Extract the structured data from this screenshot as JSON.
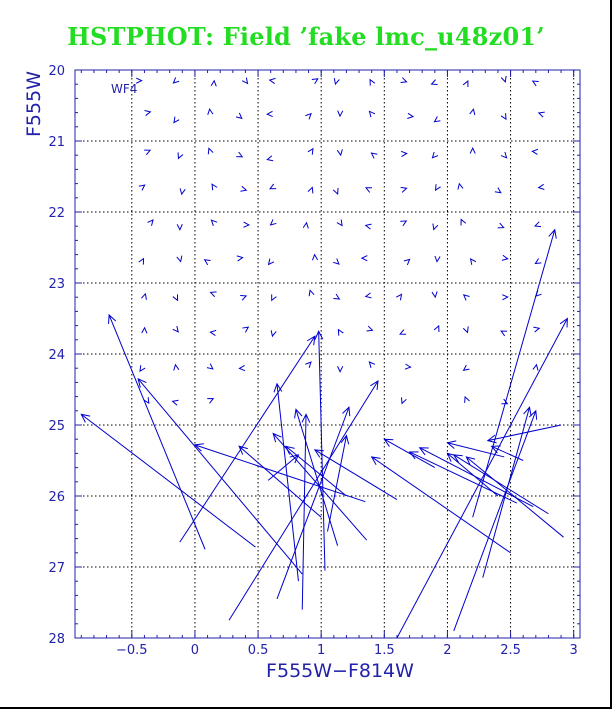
{
  "title": "HSTPHOT: Field ’fake lmc_u48z01’",
  "colors": {
    "title": "#22dd22",
    "axes": "#2222aa",
    "data": "#0000cc",
    "grid": "#000000"
  },
  "chart_data": {
    "type": "scatter",
    "title": "HSTPHOT: Field ’fake lmc_u48z01’",
    "xlabel": "F555W−F814W",
    "ylabel": "F555W",
    "panel_label": "WF4",
    "xlim": [
      -0.95,
      3.05
    ],
    "ylim": [
      28,
      20
    ],
    "y_inverted": true,
    "grid": true,
    "xticks": [
      -0.5,
      0,
      0.5,
      1,
      1.5,
      2,
      2.5,
      3
    ],
    "xtick_labels": [
      "−0.5",
      "0",
      "0.5",
      "1",
      "1.5",
      "2",
      "2.5",
      "3"
    ],
    "yticks": [
      20,
      21,
      22,
      23,
      24,
      25,
      26,
      27,
      28
    ],
    "ytick_labels": [
      "20",
      "21",
      "22",
      "23",
      "24",
      "25",
      "26",
      "27",
      "28"
    ],
    "marker": "arrow",
    "arrows": [
      {
        "x0": -0.12,
        "y0": 26.65,
        "x1": 0.95,
        "y1": 23.75
      },
      {
        "x0": 0.08,
        "y0": 26.75,
        "x1": -0.68,
        "y1": 23.45
      },
      {
        "x0": 0.48,
        "y0": 26.72,
        "x1": -0.9,
        "y1": 24.85
      },
      {
        "x0": 1.35,
        "y0": 26.08,
        "x1": 0.0,
        "y1": 25.28
      },
      {
        "x0": 0.85,
        "y0": 27.1,
        "x1": -0.45,
        "y1": 24.35
      },
      {
        "x0": 0.27,
        "y0": 27.75,
        "x1": 1.45,
        "y1": 24.38
      },
      {
        "x0": 0.65,
        "y0": 27.45,
        "x1": 1.22,
        "y1": 24.75
      },
      {
        "x0": 0.82,
        "y0": 27.2,
        "x1": 0.65,
        "y1": 24.42
      },
      {
        "x0": 0.85,
        "y0": 27.6,
        "x1": 0.88,
        "y1": 24.85
      },
      {
        "x0": 1.03,
        "y0": 27.05,
        "x1": 0.98,
        "y1": 23.68
      },
      {
        "x0": 1.13,
        "y0": 26.7,
        "x1": 0.8,
        "y1": 24.78
      },
      {
        "x0": 1.0,
        "y0": 26.3,
        "x1": 0.35,
        "y1": 25.3
      },
      {
        "x0": 1.36,
        "y0": 26.62,
        "x1": 0.62,
        "y1": 25.12
      },
      {
        "x0": 1.2,
        "y0": 26.0,
        "x1": 0.72,
        "y1": 25.3
      },
      {
        "x0": 1.05,
        "y0": 26.5,
        "x1": 1.2,
        "y1": 25.15
      },
      {
        "x0": 0.58,
        "y0": 25.78,
        "x1": 0.82,
        "y1": 25.42
      },
      {
        "x0": 1.6,
        "y0": 26.05,
        "x1": 0.95,
        "y1": 25.35
      },
      {
        "x0": 1.6,
        "y0": 28.0,
        "x1": 2.95,
        "y1": 23.5
      },
      {
        "x0": 2.05,
        "y0": 27.9,
        "x1": 2.7,
        "y1": 24.8
      },
      {
        "x0": 2.5,
        "y0": 26.8,
        "x1": 1.4,
        "y1": 25.45
      },
      {
        "x0": 2.2,
        "y0": 26.3,
        "x1": 2.85,
        "y1": 22.25
      },
      {
        "x0": 2.28,
        "y0": 27.15,
        "x1": 2.65,
        "y1": 24.75
      },
      {
        "x0": 2.68,
        "y0": 26.15,
        "x1": 1.78,
        "y1": 25.32
      },
      {
        "x0": 2.8,
        "y0": 26.25,
        "x1": 2.05,
        "y1": 25.42
      },
      {
        "x0": 2.92,
        "y0": 26.58,
        "x1": 2.15,
        "y1": 25.45
      },
      {
        "x0": 2.55,
        "y0": 26.1,
        "x1": 1.7,
        "y1": 25.38
      },
      {
        "x0": 2.4,
        "y0": 26.0,
        "x1": 2.0,
        "y1": 25.4
      },
      {
        "x0": 2.9,
        "y0": 25.0,
        "x1": 2.32,
        "y1": 25.22
      },
      {
        "x0": 2.45,
        "y0": 25.45,
        "x1": 2.0,
        "y1": 25.25
      },
      {
        "x0": 2.6,
        "y0": 25.5,
        "x1": 2.35,
        "y1": 25.3
      },
      {
        "x0": 1.9,
        "y0": 25.6,
        "x1": 1.5,
        "y1": 25.2
      }
    ],
    "grid_markers": [
      {
        "x": -0.45,
        "y": 20.15
      },
      {
        "x": -0.15,
        "y": 20.15
      },
      {
        "x": 0.15,
        "y": 20.2
      },
      {
        "x": 0.4,
        "y": 20.15
      },
      {
        "x": 0.62,
        "y": 20.15
      },
      {
        "x": 0.95,
        "y": 20.15
      },
      {
        "x": 1.12,
        "y": 20.15
      },
      {
        "x": 1.4,
        "y": 20.18
      },
      {
        "x": 1.65,
        "y": 20.15
      },
      {
        "x": 1.9,
        "y": 20.18
      },
      {
        "x": 2.15,
        "y": 20.2
      },
      {
        "x": 2.45,
        "y": 20.12
      },
      {
        "x": 2.7,
        "y": 20.18
      },
      {
        "x": -0.38,
        "y": 20.6
      },
      {
        "x": -0.15,
        "y": 20.7
      },
      {
        "x": 0.12,
        "y": 20.6
      },
      {
        "x": 0.35,
        "y": 20.65
      },
      {
        "x": 0.6,
        "y": 20.62
      },
      {
        "x": 0.9,
        "y": 20.65
      },
      {
        "x": 1.15,
        "y": 20.6
      },
      {
        "x": 1.4,
        "y": 20.62
      },
      {
        "x": 1.7,
        "y": 20.65
      },
      {
        "x": 1.92,
        "y": 20.7
      },
      {
        "x": 2.2,
        "y": 20.6
      },
      {
        "x": 2.45,
        "y": 20.65
      },
      {
        "x": 2.75,
        "y": 20.62
      },
      {
        "x": -0.38,
        "y": 21.15
      },
      {
        "x": -0.12,
        "y": 21.2
      },
      {
        "x": 0.12,
        "y": 21.15
      },
      {
        "x": 0.35,
        "y": 21.2
      },
      {
        "x": 0.6,
        "y": 21.25
      },
      {
        "x": 0.92,
        "y": 21.15
      },
      {
        "x": 1.15,
        "y": 21.15
      },
      {
        "x": 1.42,
        "y": 21.2
      },
      {
        "x": 1.65,
        "y": 21.18
      },
      {
        "x": 1.9,
        "y": 21.2
      },
      {
        "x": 2.2,
        "y": 21.15
      },
      {
        "x": 2.45,
        "y": 21.2
      },
      {
        "x": 2.7,
        "y": 21.15
      },
      {
        "x": -0.42,
        "y": 21.65
      },
      {
        "x": -0.1,
        "y": 21.7
      },
      {
        "x": 0.15,
        "y": 21.65
      },
      {
        "x": 0.38,
        "y": 21.68
      },
      {
        "x": 0.62,
        "y": 21.65
      },
      {
        "x": 0.92,
        "y": 21.7
      },
      {
        "x": 1.12,
        "y": 21.7
      },
      {
        "x": 1.38,
        "y": 21.68
      },
      {
        "x": 1.65,
        "y": 21.68
      },
      {
        "x": 1.92,
        "y": 21.65
      },
      {
        "x": 2.1,
        "y": 21.65
      },
      {
        "x": 2.4,
        "y": 21.7
      },
      {
        "x": 2.75,
        "y": 21.65
      },
      {
        "x": -0.35,
        "y": 22.15
      },
      {
        "x": -0.12,
        "y": 22.2
      },
      {
        "x": 0.15,
        "y": 22.15
      },
      {
        "x": 0.4,
        "y": 22.18
      },
      {
        "x": 0.62,
        "y": 22.15
      },
      {
        "x": 0.88,
        "y": 22.2
      },
      {
        "x": 1.15,
        "y": 22.15
      },
      {
        "x": 1.38,
        "y": 22.2
      },
      {
        "x": 1.65,
        "y": 22.15
      },
      {
        "x": 1.9,
        "y": 22.2
      },
      {
        "x": 2.12,
        "y": 22.15
      },
      {
        "x": 2.42,
        "y": 22.2
      },
      {
        "x": 2.72,
        "y": 22.18
      },
      {
        "x": -0.42,
        "y": 22.7
      },
      {
        "x": -0.12,
        "y": 22.65
      },
      {
        "x": 0.1,
        "y": 22.7
      },
      {
        "x": 0.35,
        "y": 22.65
      },
      {
        "x": 0.6,
        "y": 22.7
      },
      {
        "x": 0.95,
        "y": 22.65
      },
      {
        "x": 1.12,
        "y": 22.7
      },
      {
        "x": 1.35,
        "y": 22.65
      },
      {
        "x": 1.68,
        "y": 22.7
      },
      {
        "x": 1.92,
        "y": 22.65
      },
      {
        "x": 2.2,
        "y": 22.7
      },
      {
        "x": 2.45,
        "y": 22.65
      },
      {
        "x": 2.72,
        "y": 22.7
      },
      {
        "x": -0.4,
        "y": 23.2
      },
      {
        "x": -0.15,
        "y": 23.2
      },
      {
        "x": 0.15,
        "y": 23.15
      },
      {
        "x": 0.38,
        "y": 23.2
      },
      {
        "x": 0.62,
        "y": 23.2
      },
      {
        "x": 0.92,
        "y": 23.15
      },
      {
        "x": 1.12,
        "y": 23.2
      },
      {
        "x": 1.38,
        "y": 23.18
      },
      {
        "x": 1.62,
        "y": 23.2
      },
      {
        "x": 1.9,
        "y": 23.15
      },
      {
        "x": 2.15,
        "y": 23.2
      },
      {
        "x": 2.45,
        "y": 23.2
      },
      {
        "x": 2.72,
        "y": 23.15
      },
      {
        "x": -0.4,
        "y": 23.68
      },
      {
        "x": -0.15,
        "y": 23.65
      },
      {
        "x": 0.15,
        "y": 23.7
      },
      {
        "x": 0.4,
        "y": 23.65
      },
      {
        "x": 0.62,
        "y": 23.7
      },
      {
        "x": 1.15,
        "y": 23.7
      },
      {
        "x": 1.38,
        "y": 23.65
      },
      {
        "x": 1.65,
        "y": 23.7
      },
      {
        "x": 1.92,
        "y": 23.65
      },
      {
        "x": 2.15,
        "y": 23.65
      },
      {
        "x": 2.45,
        "y": 23.7
      },
      {
        "x": 2.7,
        "y": 23.65
      },
      {
        "x": -0.42,
        "y": 24.2
      },
      {
        "x": -0.15,
        "y": 24.2
      },
      {
        "x": 0.12,
        "y": 24.18
      },
      {
        "x": 0.38,
        "y": 24.2
      },
      {
        "x": 0.9,
        "y": 24.15
      },
      {
        "x": 1.15,
        "y": 24.2
      },
      {
        "x": 1.4,
        "y": 24.15
      },
      {
        "x": 1.68,
        "y": 24.18
      },
      {
        "x": 2.15,
        "y": 24.2
      },
      {
        "x": 2.7,
        "y": 24.2
      },
      {
        "x": -0.38,
        "y": 24.65
      },
      {
        "x": -0.15,
        "y": 24.68
      },
      {
        "x": 0.12,
        "y": 24.65
      },
      {
        "x": 1.65,
        "y": 24.65
      },
      {
        "x": 2.15,
        "y": 24.65
      },
      {
        "x": 2.45,
        "y": 24.68
      }
    ]
  }
}
